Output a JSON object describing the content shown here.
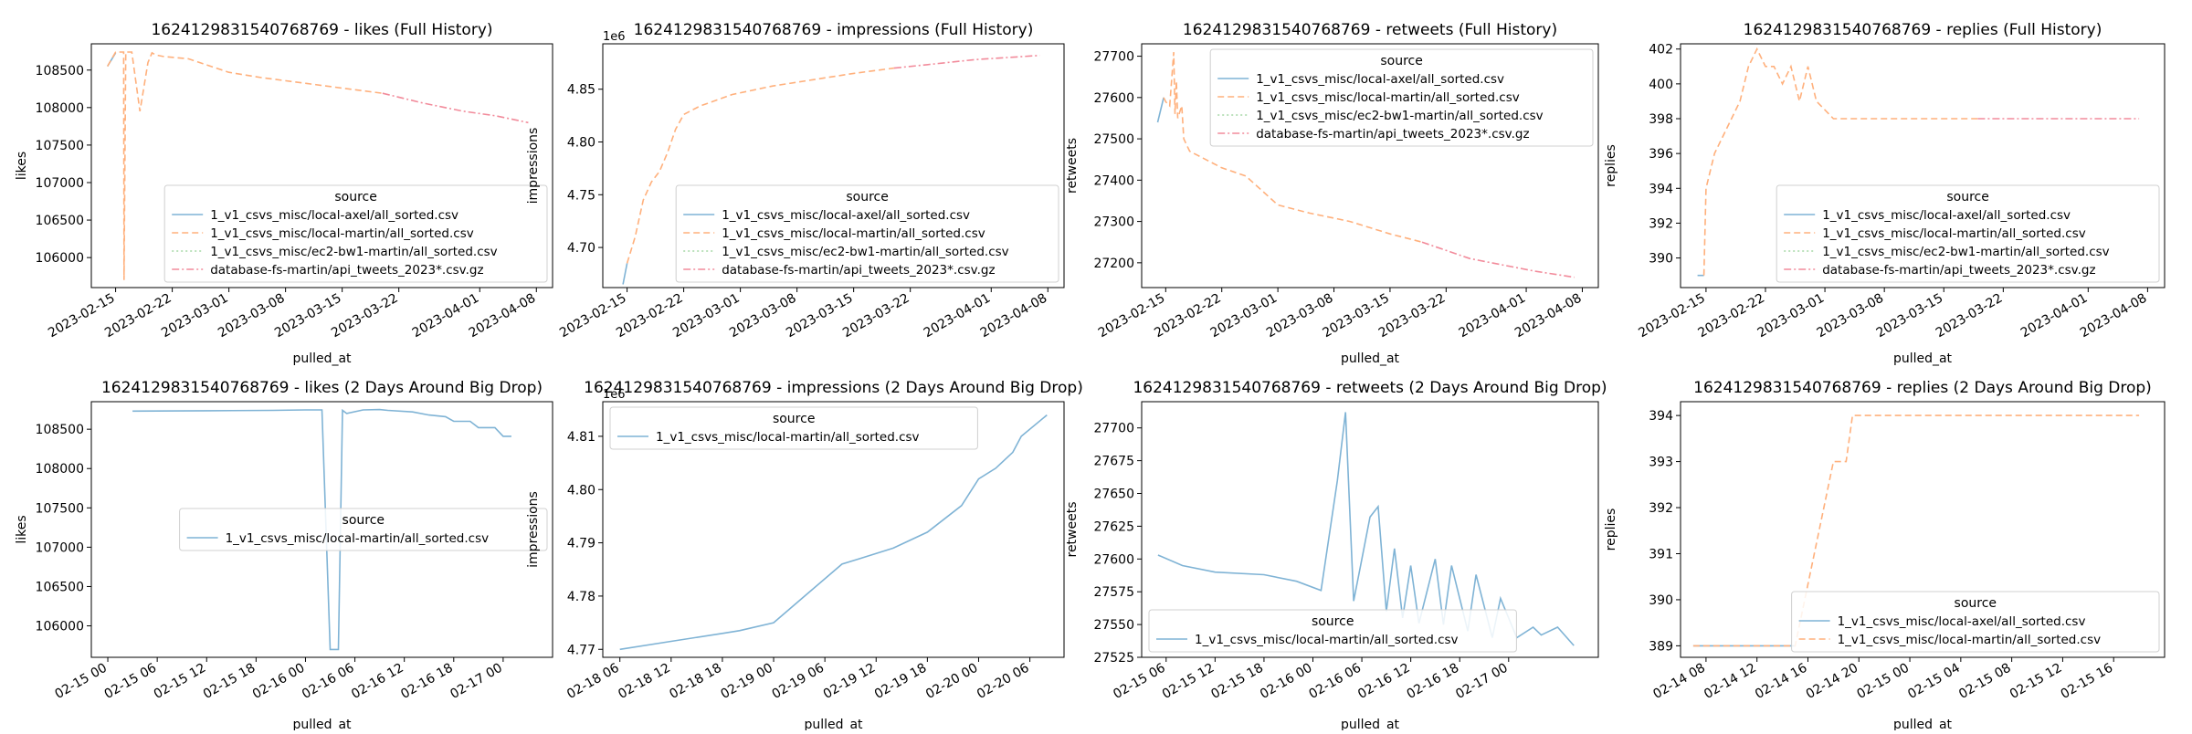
{
  "colors": {
    "s0": "#7fb3d5",
    "s1": "#ffb07c",
    "s2": "#a6d8a6",
    "s3": "#f28b9b",
    "s3b": "#9e9e9e",
    "frame": "#000000"
  },
  "legend_title": "source",
  "chart_data": [
    {
      "type": "line",
      "title": "1624129831540768769 - likes (Full History)",
      "xlabel": "pulled_at",
      "ylabel": "likes",
      "x_type": "date",
      "xlim": [
        "2023-02-12",
        "2023-04-10"
      ],
      "ylim": [
        105600,
        108850
      ],
      "yticks": [
        106000,
        106500,
        107000,
        107500,
        108000,
        108500
      ],
      "xticks": [
        "2023-02-15",
        "2023-02-22",
        "2023-03-01",
        "2023-03-08",
        "2023-03-15",
        "2023-03-22",
        "2023-04-01",
        "2023-04-08"
      ],
      "legend_position": "lower-right",
      "series": [
        {
          "name": "1_v1_csvs_misc/local-axel/all_sorted.csv",
          "style": "solid",
          "color_key": "s0",
          "x": [
            "2023-02-14",
            "2023-02-15"
          ],
          "y": [
            108550,
            108730
          ]
        },
        {
          "name": "1_v1_csvs_misc/local-martin/all_sorted.csv",
          "style": "dashed",
          "color_key": "s1",
          "x": [
            "2023-02-14",
            "2023-02-15",
            "2023-02-16",
            "2023-02-16T01",
            "2023-02-16T06",
            "2023-02-17",
            "2023-02-18",
            "2023-02-19",
            "2023-02-19T12",
            "2023-02-20",
            "2023-02-21",
            "2023-02-24",
            "2023-03-01",
            "2023-03-05",
            "2023-03-10",
            "2023-03-15",
            "2023-03-20"
          ],
          "y": [
            108550,
            108740,
            108740,
            105700,
            108740,
            108740,
            107950,
            108600,
            108730,
            108700,
            108680,
            108650,
            108470,
            108400,
            108330,
            108260,
            108190
          ]
        },
        {
          "name": "1_v1_csvs_misc/ec2-bw1-martin/all_sorted.csv",
          "style": "dotted",
          "color_key": "s2",
          "x": [],
          "y": []
        },
        {
          "name": "database-fs-martin/api_tweets_2023*.csv.gz",
          "style": "dashdot",
          "color_key": "s3",
          "x": [
            "2023-03-20",
            "2023-03-25",
            "2023-03-30",
            "2023-04-03",
            "2023-04-07"
          ],
          "y": [
            108190,
            108060,
            107950,
            107890,
            107800
          ]
        }
      ]
    },
    {
      "type": "line",
      "title": "1624129831540768769 - impressions (Full History)",
      "xlabel": "",
      "ylabel": "impressions",
      "offset_label": "1e6",
      "x_type": "date",
      "xlim": [
        "2023-02-12",
        "2023-04-10"
      ],
      "ylim": [
        4.662,
        4.893
      ],
      "yticks": [
        4.7,
        4.75,
        4.8,
        4.85
      ],
      "ytick_labels": [
        "4.70",
        "4.75",
        "4.80",
        "4.85"
      ],
      "xticks": [
        "2023-02-15",
        "2023-02-22",
        "2023-03-01",
        "2023-03-08",
        "2023-03-15",
        "2023-03-22",
        "2023-04-01",
        "2023-04-08"
      ],
      "legend_position": "lower-right",
      "series": [
        {
          "name": "1_v1_csvs_misc/local-axel/all_sorted.csv",
          "style": "solid",
          "color_key": "s0",
          "x": [
            "2023-02-14T12",
            "2023-02-15"
          ],
          "y": [
            4.665,
            4.685
          ]
        },
        {
          "name": "1_v1_csvs_misc/local-martin/all_sorted.csv",
          "style": "dashed",
          "color_key": "s1",
          "x": [
            "2023-02-15",
            "2023-02-16",
            "2023-02-17",
            "2023-02-18",
            "2023-02-19",
            "2023-02-20",
            "2023-02-21",
            "2023-02-22",
            "2023-02-24",
            "2023-02-28",
            "2023-03-05",
            "2023-03-10",
            "2023-03-15",
            "2023-03-20"
          ],
          "y": [
            4.685,
            4.71,
            4.745,
            4.762,
            4.772,
            4.79,
            4.812,
            4.826,
            4.834,
            4.845,
            4.853,
            4.859,
            4.865,
            4.87
          ]
        },
        {
          "name": "1_v1_csvs_misc/ec2-bw1-martin/all_sorted.csv",
          "style": "dotted",
          "color_key": "s2",
          "x": [],
          "y": []
        },
        {
          "name": "database-fs-martin/api_tweets_2023*.csv.gz",
          "style": "dashdot",
          "color_key": "s3",
          "x": [
            "2023-03-20",
            "2023-03-25",
            "2023-03-30",
            "2023-04-03",
            "2023-04-07"
          ],
          "y": [
            4.87,
            4.874,
            4.878,
            4.88,
            4.882
          ]
        }
      ]
    },
    {
      "type": "line",
      "title": "1624129831540768769 - retweets (Full History)",
      "xlabel": "pulled_at",
      "ylabel": "retweets",
      "x_type": "date",
      "xlim": [
        "2023-02-12",
        "2023-04-10"
      ],
      "ylim": [
        27140,
        27730
      ],
      "yticks": [
        27200,
        27300,
        27400,
        27500,
        27600,
        27700
      ],
      "xticks": [
        "2023-02-15",
        "2023-02-22",
        "2023-03-01",
        "2023-03-08",
        "2023-03-15",
        "2023-03-22",
        "2023-04-01",
        "2023-04-08"
      ],
      "legend_position": "upper-right",
      "series": [
        {
          "name": "1_v1_csvs_misc/local-axel/all_sorted.csv",
          "style": "solid",
          "color_key": "s0",
          "x": [
            "2023-02-14",
            "2023-02-14T18"
          ],
          "y": [
            27540,
            27600
          ]
        },
        {
          "name": "1_v1_csvs_misc/local-martin/all_sorted.csv",
          "style": "dashed",
          "color_key": "s1",
          "x": [
            "2023-02-14T18",
            "2023-02-15",
            "2023-02-15T12",
            "2023-02-16",
            "2023-02-16T04",
            "2023-02-16T08",
            "2023-02-16T12",
            "2023-02-17",
            "2023-02-17T06",
            "2023-02-18",
            "2023-02-19",
            "2023-02-22",
            "2023-02-25",
            "2023-03-01",
            "2023-03-05",
            "2023-03-10",
            "2023-03-15",
            "2023-03-19"
          ],
          "y": [
            27600,
            27590,
            27580,
            27710,
            27560,
            27640,
            27550,
            27580,
            27500,
            27470,
            27460,
            27430,
            27410,
            27340,
            27320,
            27300,
            27270,
            27250
          ]
        },
        {
          "name": "1_v1_csvs_misc/ec2-bw1-martin/all_sorted.csv",
          "style": "dotted",
          "color_key": "s2",
          "x": [],
          "y": []
        },
        {
          "name": "database-fs-martin/api_tweets_2023*.csv.gz",
          "style": "dashdot",
          "color_key": "s3",
          "x": [
            "2023-03-19",
            "2023-03-22",
            "2023-03-25",
            "2023-03-29",
            "2023-04-02",
            "2023-04-07"
          ],
          "y": [
            27250,
            27230,
            27210,
            27195,
            27180,
            27165
          ]
        }
      ]
    },
    {
      "type": "line",
      "title": "1624129831540768769 - replies (Full History)",
      "xlabel": "pulled_at",
      "ylabel": "replies",
      "x_type": "date",
      "xlim": [
        "2023-02-12",
        "2023-04-10"
      ],
      "ylim": [
        388.3,
        402.3
      ],
      "yticks": [
        390,
        392,
        394,
        396,
        398,
        400,
        402
      ],
      "xticks": [
        "2023-02-15",
        "2023-02-22",
        "2023-03-01",
        "2023-03-08",
        "2023-03-15",
        "2023-03-22",
        "2023-04-01",
        "2023-04-08"
      ],
      "legend_position": "lower-right",
      "series": [
        {
          "name": "1_v1_csvs_misc/local-axel/all_sorted.csv",
          "style": "solid",
          "color_key": "s0",
          "x": [
            "2023-02-14",
            "2023-02-14T18"
          ],
          "y": [
            389,
            389
          ]
        },
        {
          "name": "1_v1_csvs_misc/local-martin/all_sorted.csv",
          "style": "dashed",
          "color_key": "s1",
          "x": [
            "2023-02-14T18",
            "2023-02-15",
            "2023-02-16",
            "2023-02-17",
            "2023-02-18",
            "2023-02-19",
            "2023-02-20",
            "2023-02-21",
            "2023-02-22",
            "2023-02-23",
            "2023-02-24",
            "2023-02-25",
            "2023-02-26",
            "2023-02-27",
            "2023-02-28",
            "2023-03-02",
            "2023-03-10",
            "2023-03-19"
          ],
          "y": [
            389,
            394,
            396,
            397,
            398,
            399,
            401,
            402,
            401,
            401,
            400,
            401,
            399,
            401,
            399,
            398,
            398,
            398
          ]
        },
        {
          "name": "1_v1_csvs_misc/ec2-bw1-martin/all_sorted.csv",
          "style": "dotted",
          "color_key": "s2",
          "x": [],
          "y": []
        },
        {
          "name": "database-fs-martin/api_tweets_2023*.csv.gz",
          "style": "dashdot",
          "color_key": "s3",
          "x": [
            "2023-03-19",
            "2023-04-07"
          ],
          "y": [
            398,
            398
          ]
        }
      ]
    },
    {
      "type": "line",
      "title": "1624129831540768769 - likes (2 Days Around Big Drop)",
      "xlabel": "pulled_at",
      "ylabel": "likes",
      "x_type": "date",
      "xlim": [
        "2023-02-14T22",
        "2023-02-17T06"
      ],
      "ylim": [
        105600,
        108850
      ],
      "yticks": [
        106000,
        106500,
        107000,
        107500,
        108000,
        108500
      ],
      "xticks": [
        "2023-02-15T00",
        "2023-02-15T06",
        "2023-02-15T12",
        "2023-02-15T18",
        "2023-02-16T00",
        "2023-02-16T06",
        "2023-02-16T12",
        "2023-02-16T18",
        "2023-02-17T00"
      ],
      "legend_position": "center-right",
      "series": [
        {
          "name": "1_v1_csvs_misc/local-martin/all_sorted.csv",
          "style": "solid",
          "color_key": "s0",
          "x": [
            "2023-02-15T03",
            "2023-02-15T12",
            "2023-02-15T20",
            "2023-02-16T00",
            "2023-02-16T02",
            "2023-02-16T03",
            "2023-02-16T04",
            "2023-02-16T04:30",
            "2023-02-16T05",
            "2023-02-16T07",
            "2023-02-16T09",
            "2023-02-16T10",
            "2023-02-16T13",
            "2023-02-16T15",
            "2023-02-16T17",
            "2023-02-16T18",
            "2023-02-16T20",
            "2023-02-16T21",
            "2023-02-16T23",
            "2023-02-17T00",
            "2023-02-17T01"
          ],
          "y": [
            108730,
            108735,
            108740,
            108745,
            108745,
            105700,
            105700,
            108740,
            108700,
            108745,
            108750,
            108740,
            108720,
            108680,
            108660,
            108600,
            108600,
            108520,
            108520,
            108410,
            108410
          ]
        }
      ]
    },
    {
      "type": "line",
      "title": "1624129831540768769 - impressions (2 Days Around Big Drop)",
      "xlabel": "pulled_at",
      "ylabel": "impressions",
      "offset_label": "1e6",
      "x_type": "date",
      "xlim": [
        "2023-02-18T04",
        "2023-02-20T10"
      ],
      "ylim": [
        4.7685,
        4.8165
      ],
      "yticks": [
        4.77,
        4.78,
        4.79,
        4.8,
        4.81
      ],
      "ytick_labels": [
        "4.77",
        "4.78",
        "4.79",
        "4.80",
        "4.81"
      ],
      "xticks": [
        "2023-02-18T06",
        "2023-02-18T12",
        "2023-02-18T18",
        "2023-02-19T00",
        "2023-02-19T06",
        "2023-02-19T12",
        "2023-02-19T18",
        "2023-02-20T00",
        "2023-02-20T06"
      ],
      "legend_position": "upper-left",
      "series": [
        {
          "name": "1_v1_csvs_misc/local-martin/all_sorted.csv",
          "style": "solid",
          "color_key": "s0",
          "x": [
            "2023-02-18T06",
            "2023-02-18T12",
            "2023-02-18T18",
            "2023-02-18T20",
            "2023-02-19T00",
            "2023-02-19T04",
            "2023-02-19T08",
            "2023-02-19T10",
            "2023-02-19T14",
            "2023-02-19T18",
            "2023-02-19T22",
            "2023-02-20T00",
            "2023-02-20T02",
            "2023-02-20T04",
            "2023-02-20T05",
            "2023-02-20T08"
          ],
          "y": [
            4.77,
            4.7715,
            4.773,
            4.7735,
            4.775,
            4.7805,
            4.786,
            4.787,
            4.789,
            4.792,
            4.797,
            4.802,
            4.804,
            4.807,
            4.81,
            4.814
          ]
        }
      ]
    },
    {
      "type": "line",
      "title": "1624129831540768769 - retweets (2 Days Around Big Drop)",
      "xlabel": "pulled_at",
      "ylabel": "retweets",
      "x_type": "date",
      "xlim": [
        "2023-02-15T03",
        "2023-02-17T11"
      ],
      "ylim": [
        27525,
        27720
      ],
      "yticks": [
        27525,
        27550,
        27575,
        27600,
        27625,
        27650,
        27675,
        27700
      ],
      "xticks": [
        "2023-02-15T06",
        "2023-02-15T12",
        "2023-02-15T18",
        "2023-02-16T00",
        "2023-02-16T06",
        "2023-02-16T12",
        "2023-02-16T18",
        "2023-02-17T00"
      ],
      "legend_position": "lower-left",
      "series": [
        {
          "name": "1_v1_csvs_misc/local-martin/all_sorted.csv",
          "style": "solid",
          "color_key": "s0",
          "x": [
            "2023-02-15T05",
            "2023-02-15T08",
            "2023-02-15T12",
            "2023-02-15T18",
            "2023-02-15T22",
            "2023-02-16T01",
            "2023-02-16T03",
            "2023-02-16T04",
            "2023-02-16T05",
            "2023-02-16T06",
            "2023-02-16T07",
            "2023-02-16T08",
            "2023-02-16T09",
            "2023-02-16T10",
            "2023-02-16T11",
            "2023-02-16T12",
            "2023-02-16T13",
            "2023-02-16T15",
            "2023-02-16T16",
            "2023-02-16T17",
            "2023-02-16T19",
            "2023-02-16T20",
            "2023-02-16T22",
            "2023-02-16T23",
            "2023-02-17T01",
            "2023-02-17T03",
            "2023-02-17T04",
            "2023-02-17T06",
            "2023-02-17T08"
          ],
          "y": [
            27603,
            27595,
            27590,
            27588,
            27583,
            27576,
            27660,
            27712,
            27568,
            27600,
            27632,
            27640,
            27560,
            27608,
            27555,
            27595,
            27551,
            27600,
            27550,
            27595,
            27545,
            27588,
            27540,
            27570,
            27540,
            27548,
            27542,
            27548,
            27534
          ]
        }
      ]
    },
    {
      "type": "line",
      "title": "1624129831540768769 - replies (2 Days Around Big Drop)",
      "xlabel": "pulled_at",
      "ylabel": "replies",
      "x_type": "date",
      "xlim": [
        "2023-02-14T06",
        "2023-02-15T20"
      ],
      "ylim": [
        388.75,
        394.3
      ],
      "yticks": [
        389,
        390,
        391,
        392,
        393,
        394
      ],
      "xticks": [
        "2023-02-14T08",
        "2023-02-14T12",
        "2023-02-14T16",
        "2023-02-14T20",
        "2023-02-15T00",
        "2023-02-15T04",
        "2023-02-15T08",
        "2023-02-15T12",
        "2023-02-15T16"
      ],
      "legend_position": "lower-right",
      "series": [
        {
          "name": "1_v1_csvs_misc/local-axel/all_sorted.csv",
          "style": "solid",
          "color_key": "s0",
          "x": [
            "2023-02-14T07",
            "2023-02-14T15"
          ],
          "y": [
            389,
            389
          ]
        },
        {
          "name": "1_v1_csvs_misc/local-martin/all_sorted.csv",
          "style": "dashed",
          "color_key": "s1",
          "x": [
            "2023-02-14T07",
            "2023-02-14T15",
            "2023-02-14T18",
            "2023-02-14T19",
            "2023-02-14T19:30",
            "2023-02-15T18"
          ],
          "y": [
            389,
            389,
            393,
            393,
            394,
            394
          ]
        }
      ]
    }
  ]
}
